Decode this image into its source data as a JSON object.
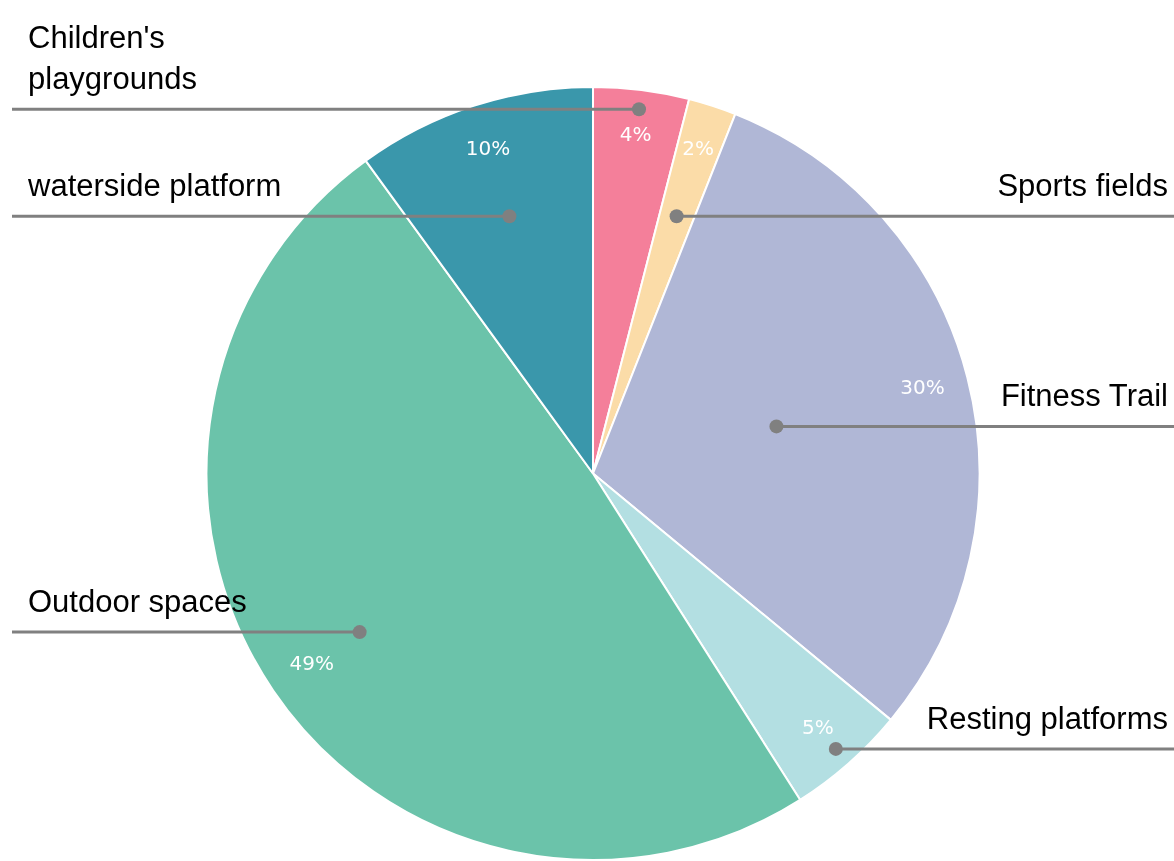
{
  "chart_data": {
    "type": "pie",
    "categories": [
      "Children's playgrounds",
      "Sports fields",
      "Fitness Trail",
      "Resting platforms",
      "Outdoor spaces",
      "waterside platform"
    ],
    "values": [
      4,
      2,
      30,
      5,
      49,
      10
    ],
    "colors": [
      "#f47f9a",
      "#fbdca8",
      "#b0b7d6",
      "#b3dfe2",
      "#6bc3aa",
      "#3a97ab"
    ],
    "value_labels": [
      "4%",
      "2%",
      "30%",
      "5%",
      "49%",
      "10%"
    ],
    "legend": false
  }
}
